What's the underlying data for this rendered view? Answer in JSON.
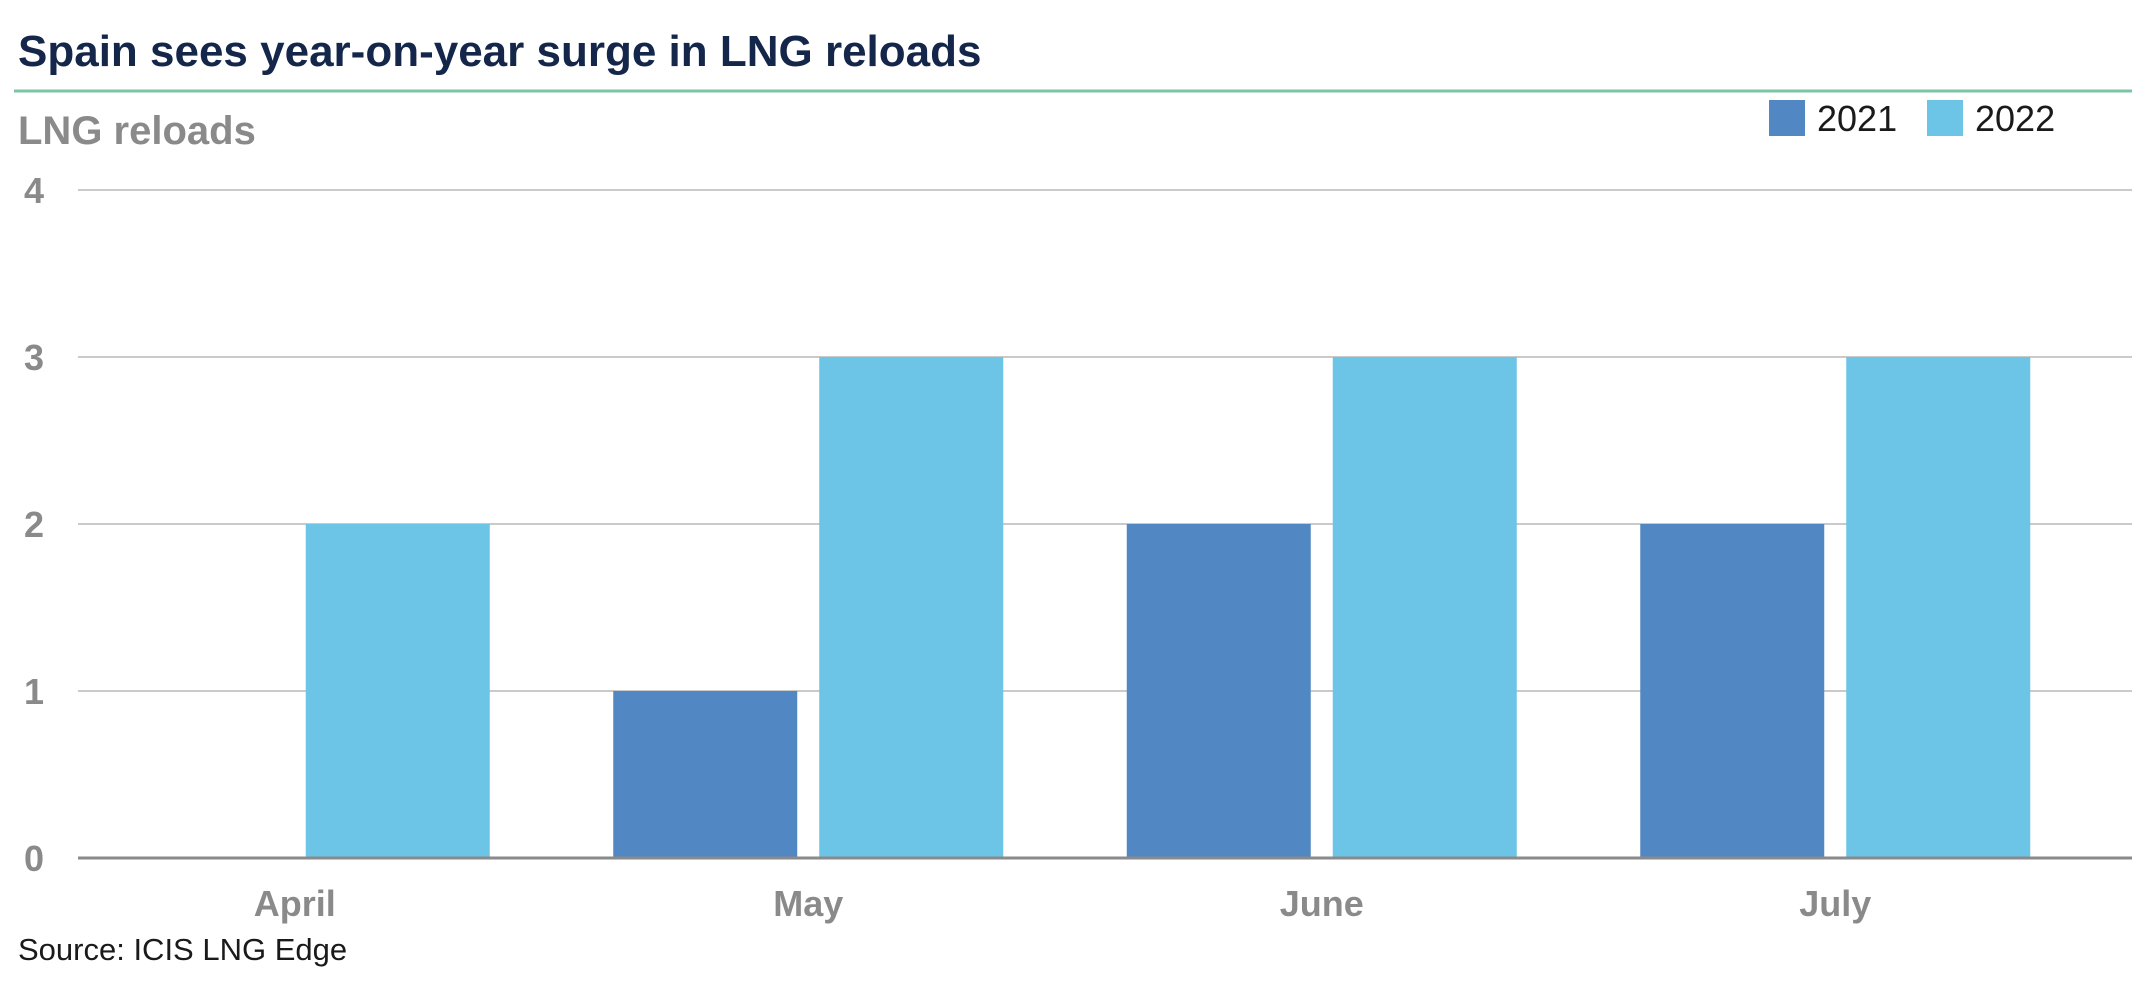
{
  "chart_data": {
    "type": "bar",
    "title": "Spain sees year-on-year surge in LNG reloads",
    "ylabel": "LNG reloads",
    "xlabel": "",
    "categories": [
      "April",
      "May",
      "June",
      "July"
    ],
    "series": [
      {
        "name": "2021",
        "values": [
          0,
          1,
          2,
          2
        ],
        "color": "#5187c2"
      },
      {
        "name": "2022",
        "values": [
          2,
          3,
          3,
          3
        ],
        "color": "#6cc4e6"
      }
    ],
    "ylim": [
      0,
      4
    ],
    "yticks": [
      0,
      1,
      2,
      3,
      4
    ],
    "grid": true,
    "legend_position": "top-right",
    "source": "Source: ICIS LNG Edge",
    "colors": {
      "title": "#14264a",
      "title_rule": "#7cc5a3",
      "grid": "#b8b8b8",
      "axis": "#8a8a8a",
      "tick_text": "#8a8a8a"
    }
  }
}
